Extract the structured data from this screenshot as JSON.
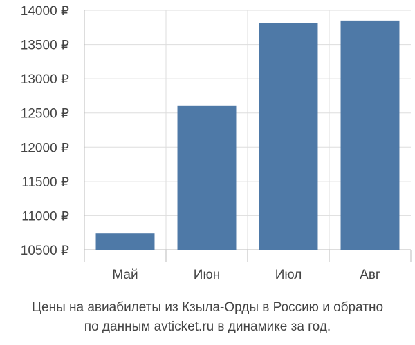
{
  "chart_data": {
    "type": "bar",
    "categories": [
      "Май",
      "Июн",
      "Июл",
      "Авг"
    ],
    "values": [
      10740,
      12610,
      13810,
      13850
    ],
    "ylim": [
      10500,
      14000
    ],
    "yticks": [
      10500,
      11000,
      11500,
      12000,
      12500,
      13000,
      13500,
      14000
    ],
    "ytick_labels": [
      "10500 ₽",
      "11000 ₽",
      "11500 ₽",
      "12000 ₽",
      "12500 ₽",
      "13000 ₽",
      "13500 ₽",
      "14000 ₽"
    ],
    "grid": true,
    "legend": "none",
    "bar_color": "#4e79a7",
    "grid_color": "#dddddd",
    "axis_color": "#bbbbbb"
  },
  "caption": {
    "line1": "Цены на авиабилеты из Кзыла-Орды в Россию и обратно",
    "line2": "по данным avticket.ru в динамике за год."
  }
}
